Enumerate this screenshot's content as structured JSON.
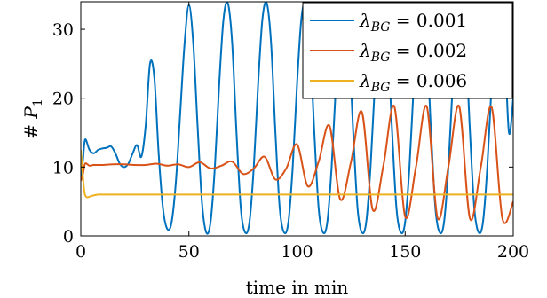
{
  "chart_data": {
    "type": "line",
    "xlabel": "time in min",
    "ylabel": "# P₁",
    "xlim": [
      0,
      200
    ],
    "ylim": [
      0,
      34
    ],
    "xticks": [
      0,
      50,
      100,
      150,
      200
    ],
    "yticks": [
      0,
      10,
      20,
      30
    ],
    "xtick_labels": [
      "0",
      "50",
      "100",
      "150",
      "200"
    ],
    "ytick_labels": [
      "0",
      "10",
      "20",
      "30"
    ],
    "grid": false,
    "legend_position": "top-right",
    "series": [
      {
        "name": "λ_BG = 0.001",
        "legend_label": "λBG = 0.001",
        "color": "#0072bd",
        "x": [
          0,
          1,
          2,
          4,
          6,
          8,
          10,
          12,
          14,
          16,
          18,
          20,
          22,
          24,
          26,
          28,
          30,
          32,
          34,
          36,
          38,
          40,
          42,
          44,
          46,
          48,
          50,
          52,
          54,
          56,
          58,
          60,
          62,
          64,
          66,
          68,
          70,
          72,
          74,
          76,
          78,
          80,
          82,
          84,
          86,
          88,
          90,
          92,
          94,
          96,
          98,
          100,
          102,
          104,
          106,
          108,
          110,
          112,
          114,
          116,
          118,
          120,
          122,
          124,
          126,
          128,
          130,
          132,
          134,
          136,
          138,
          140,
          142,
          144,
          146,
          148,
          150,
          152,
          154,
          156,
          158,
          160,
          162,
          164,
          166,
          168,
          170,
          172,
          174,
          176,
          178,
          180,
          182,
          184,
          186,
          188,
          190,
          192,
          194,
          196,
          198,
          200
        ],
        "values": [
          8,
          11,
          14,
          12.5,
          12,
          12.5,
          12.7,
          12.8,
          13,
          12,
          10.5,
          10,
          10.5,
          12,
          13.2,
          11.5,
          16,
          25,
          23,
          12,
          4,
          1,
          2,
          8,
          18,
          28,
          33.5,
          28,
          16,
          5,
          0.5,
          2,
          10,
          22,
          31.5,
          33.8,
          28,
          15,
          4,
          0.5,
          2,
          10,
          22,
          31.5,
          33.8,
          28,
          15,
          4,
          0.5,
          2,
          10,
          22,
          31.5,
          33.8,
          28,
          15,
          4,
          0.5,
          2,
          10,
          22,
          31.5,
          33.8,
          28,
          15,
          4,
          0.5,
          2,
          10,
          22,
          31.5,
          33.8,
          28,
          15,
          4,
          0.5,
          2,
          10,
          22,
          31.5,
          33.8,
          28,
          15,
          4,
          0.5,
          2,
          10,
          22,
          31.5,
          33.8,
          28,
          15,
          4,
          0.5,
          2,
          10,
          22,
          31.5,
          33.8,
          28,
          15,
          20
        ]
      },
      {
        "name": "λ_BG = 0.002",
        "legend_label": "λBG = 0.002",
        "color": "#d95319",
        "x": [
          0,
          1,
          2,
          4,
          6,
          10,
          15,
          20,
          25,
          30,
          35,
          40,
          45,
          50,
          55,
          60,
          65,
          70,
          75,
          80,
          85,
          90,
          95,
          100,
          105,
          110,
          115,
          120,
          125,
          130,
          135,
          140,
          145,
          150,
          155,
          160,
          165,
          170,
          175,
          180,
          185,
          190,
          195,
          200
        ],
        "values": [
          8,
          9,
          10.5,
          10.2,
          10.3,
          10.3,
          10.4,
          10.4,
          10.3,
          10.3,
          10.5,
          10.2,
          10.4,
          10.0,
          10.7,
          9.8,
          10.2,
          10.8,
          9.0,
          9.8,
          11.5,
          8.2,
          9.8,
          13.3,
          7.2,
          10.8,
          16.0,
          5.3,
          10.8,
          18.0,
          3.8,
          10.3,
          18.8,
          2.8,
          10.0,
          18.8,
          2.6,
          10.0,
          18.8,
          2.5,
          10.0,
          18.7,
          2.5,
          5
        ]
      },
      {
        "name": "λ_BG = 0.006",
        "legend_label": "λBG = 0.006",
        "color": "#edb120",
        "x": [
          0,
          0.5,
          1,
          1.5,
          2,
          3,
          5,
          8,
          10,
          20,
          50,
          100,
          150,
          200
        ],
        "values": [
          12.5,
          10.5,
          8.5,
          6.8,
          5.9,
          5.6,
          5.8,
          6.0,
          6.0,
          6.0,
          6.0,
          6.0,
          6.0,
          6.0
        ]
      }
    ]
  }
}
